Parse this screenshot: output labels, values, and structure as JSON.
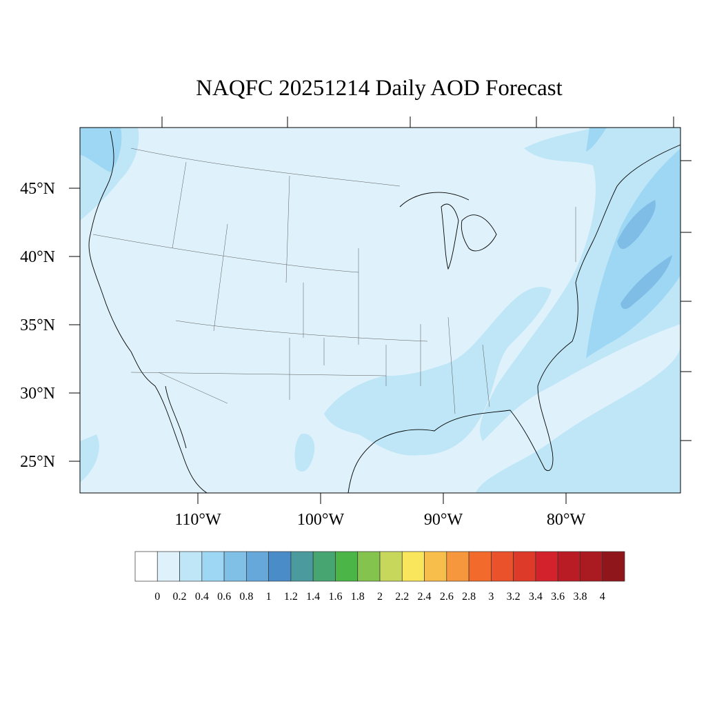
{
  "title": "NAQFC 20251214 Daily AOD Forecast",
  "map": {
    "lat_labels": [
      "45°N",
      "40°N",
      "35°N",
      "30°N",
      "25°N"
    ],
    "lon_labels": [
      "110°W",
      "100°W",
      "90°W",
      "80°W"
    ],
    "background_color": "#dff2fb",
    "regions": [
      {
        "level": "0.2-0.4",
        "color": "#bee6f7"
      },
      {
        "level": "0.4-0.6",
        "color": "#9dd7f4"
      },
      {
        "level": "0.6-0.8",
        "color": "#80bde6"
      }
    ]
  },
  "colorbar": {
    "labels": [
      "0",
      "0.2",
      "0.4",
      "0.6",
      "0.8",
      "1",
      "1.2",
      "1.4",
      "1.6",
      "1.8",
      "2",
      "2.2",
      "2.4",
      "2.6",
      "2.8",
      "3",
      "3.2",
      "3.4",
      "3.6",
      "3.8",
      "4"
    ],
    "colors": [
      "#ffffff",
      "#dff2fb",
      "#bee6f7",
      "#9dd7f4",
      "#80bfe6",
      "#67a8da",
      "#4a8cc8",
      "#4a9a9e",
      "#47a572",
      "#4bb548",
      "#84c44e",
      "#c6d75c",
      "#f9e65c",
      "#f8be4c",
      "#f7973d",
      "#f36b2c",
      "#e9522b",
      "#de3a2a",
      "#d3222b",
      "#b91c24",
      "#a91b20",
      "#8f161b"
    ]
  }
}
